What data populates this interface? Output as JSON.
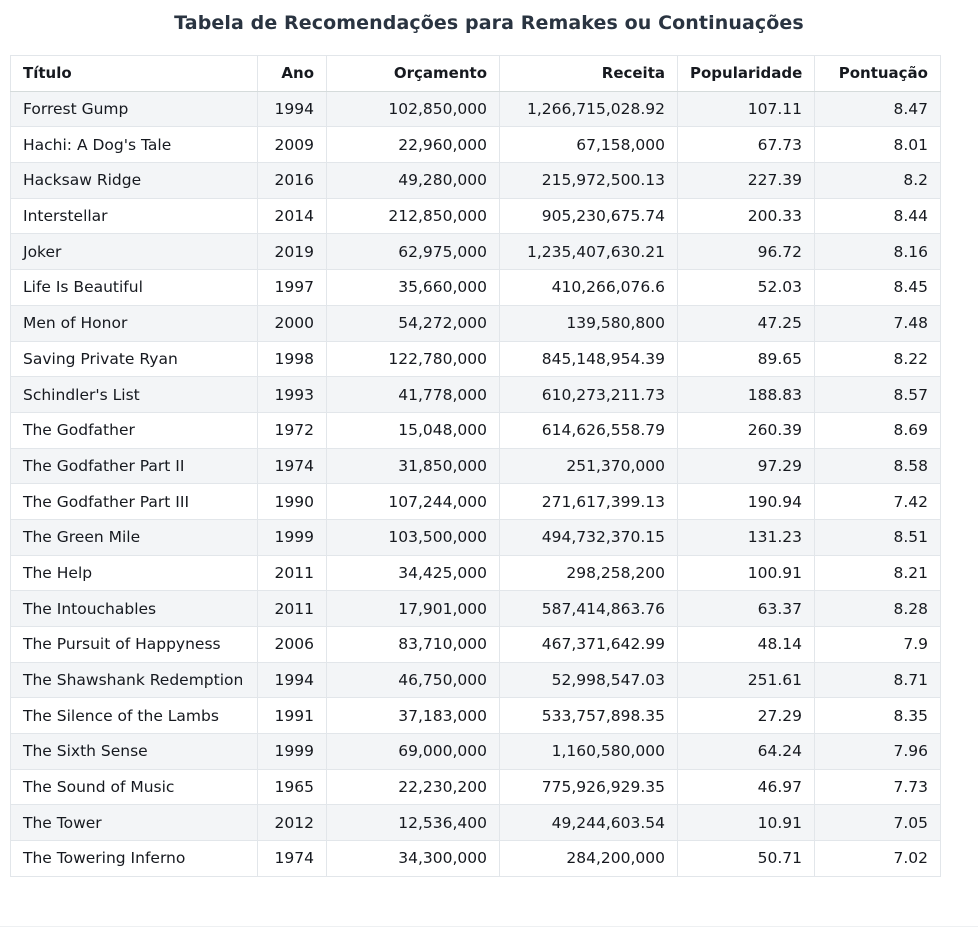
{
  "chart_data": {
    "type": "table",
    "title": "Tabela de Recomendações para Remakes ou Continuações",
    "columns": [
      "Título",
      "Ano",
      "Orçamento",
      "Receita",
      "Popularidade",
      "Pontuação"
    ],
    "rows": [
      [
        "Forrest Gump",
        "1994",
        "102,850,000",
        "1,266,715,028.92",
        "107.11",
        "8.47"
      ],
      [
        "Hachi: A Dog's Tale",
        "2009",
        "22,960,000",
        "67,158,000",
        "67.73",
        "8.01"
      ],
      [
        "Hacksaw Ridge",
        "2016",
        "49,280,000",
        "215,972,500.13",
        "227.39",
        "8.2"
      ],
      [
        "Interstellar",
        "2014",
        "212,850,000",
        "905,230,675.74",
        "200.33",
        "8.44"
      ],
      [
        "Joker",
        "2019",
        "62,975,000",
        "1,235,407,630.21",
        "96.72",
        "8.16"
      ],
      [
        "Life Is Beautiful",
        "1997",
        "35,660,000",
        "410,266,076.6",
        "52.03",
        "8.45"
      ],
      [
        "Men of Honor",
        "2000",
        "54,272,000",
        "139,580,800",
        "47.25",
        "7.48"
      ],
      [
        "Saving Private Ryan",
        "1998",
        "122,780,000",
        "845,148,954.39",
        "89.65",
        "8.22"
      ],
      [
        "Schindler's List",
        "1993",
        "41,778,000",
        "610,273,211.73",
        "188.83",
        "8.57"
      ],
      [
        "The Godfather",
        "1972",
        "15,048,000",
        "614,626,558.79",
        "260.39",
        "8.69"
      ],
      [
        "The Godfather Part II",
        "1974",
        "31,850,000",
        "251,370,000",
        "97.29",
        "8.58"
      ],
      [
        "The Godfather Part III",
        "1990",
        "107,244,000",
        "271,617,399.13",
        "190.94",
        "7.42"
      ],
      [
        "The Green Mile",
        "1999",
        "103,500,000",
        "494,732,370.15",
        "131.23",
        "8.51"
      ],
      [
        "The Help",
        "2011",
        "34,425,000",
        "298,258,200",
        "100.91",
        "8.21"
      ],
      [
        "The Intouchables",
        "2011",
        "17,901,000",
        "587,414,863.76",
        "63.37",
        "8.28"
      ],
      [
        "The Pursuit of Happyness",
        "2006",
        "83,710,000",
        "467,371,642.99",
        "48.14",
        "7.9"
      ],
      [
        "The Shawshank Redemption",
        "1994",
        "46,750,000",
        "52,998,547.03",
        "251.61",
        "8.71"
      ],
      [
        "The Silence of the Lambs",
        "1991",
        "37,183,000",
        "533,757,898.35",
        "27.29",
        "8.35"
      ],
      [
        "The Sixth Sense",
        "1999",
        "69,000,000",
        "1,160,580,000",
        "64.24",
        "7.96"
      ],
      [
        "The Sound of Music",
        "1965",
        "22,230,200",
        "775,926,929.35",
        "46.97",
        "7.73"
      ],
      [
        "The Tower",
        "2012",
        "12,536,400",
        "49,244,603.54",
        "10.91",
        "7.05"
      ],
      [
        "The Towering Inferno",
        "1974",
        "34,300,000",
        "284,200,000",
        "50.71",
        "7.02"
      ]
    ]
  }
}
